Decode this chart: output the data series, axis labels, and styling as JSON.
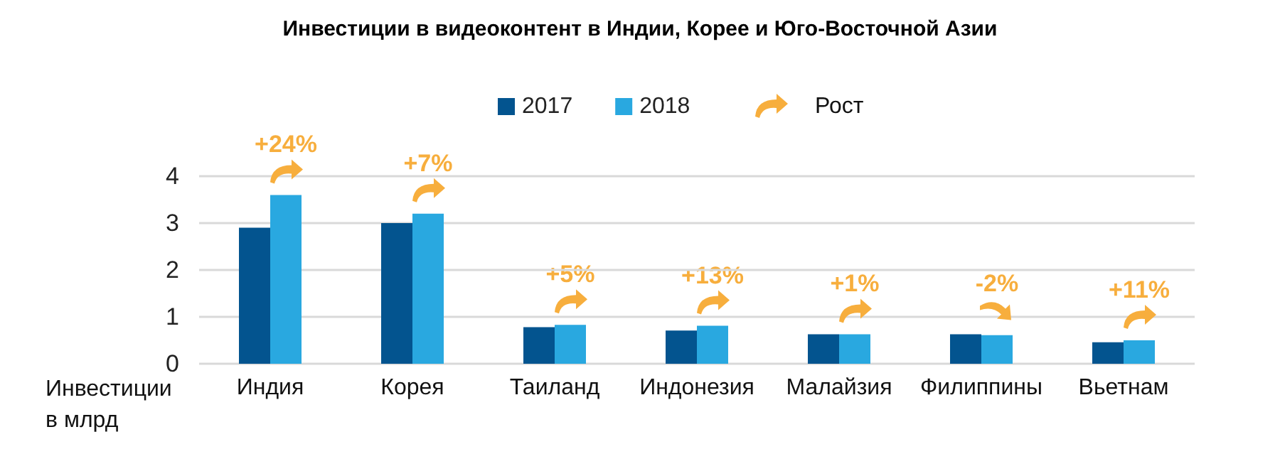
{
  "chart_data": {
    "type": "bar",
    "title": "Инвестиции в видеоконтент в Индии, Корее и Юго-Восточной Азии",
    "ylabel": "Инвестиции в млрд",
    "categories": [
      "Индия",
      "Корея",
      "Таиланд",
      "Индонезия",
      "Малайзия",
      "Филиппины",
      "Вьетнам"
    ],
    "series": [
      {
        "name": "2017",
        "color": "#03548f",
        "values": [
          2.9,
          3.0,
          0.78,
          0.71,
          0.63,
          0.63,
          0.46
        ]
      },
      {
        "name": "2018",
        "color": "#29a8e0",
        "values": [
          3.6,
          3.2,
          0.83,
          0.81,
          0.63,
          0.61,
          0.5
        ]
      }
    ],
    "ylim": [
      0,
      4
    ],
    "yticks": [
      0,
      1,
      2,
      3,
      4
    ],
    "grid": "y",
    "legend": "top",
    "annotations": [
      "+24%",
      "+7%",
      "+5%",
      "+13%",
      "+1%",
      "-2%",
      "+11%",
      "Рост"
    ]
  }
}
